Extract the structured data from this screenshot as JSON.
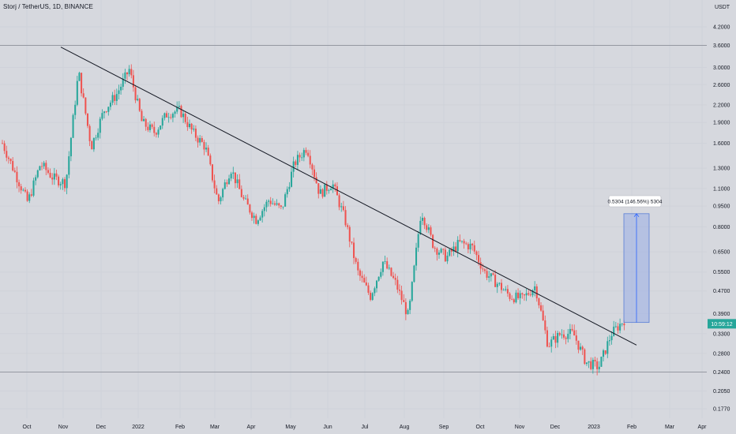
{
  "title": "Storj / TetherUS, 1D, BINANCE",
  "chart_data": {
    "type": "candlestick",
    "yscale": "log",
    "y_unit": "USDT",
    "y_ticks": [
      "4.2000",
      "3.6000",
      "3.0000",
      "2.6000",
      "2.2000",
      "1.9000",
      "1.6000",
      "1.3000",
      "1.1000",
      "0.9500",
      "0.8000",
      "0.6500",
      "0.5500",
      "0.4700",
      "0.3900",
      "0.3300",
      "0.2800",
      "0.2400",
      "0.2050",
      "0.1770"
    ],
    "x_ticks": [
      "Oct",
      "Nov",
      "Dec",
      "2022",
      "Feb",
      "Mar",
      "Apr",
      "May",
      "Jun",
      "Jul",
      "Aug",
      "Sep",
      "Oct",
      "Nov",
      "Dec",
      "2023",
      "Feb",
      "Mar",
      "Apr"
    ],
    "countdown": "10:59:12",
    "measure_label": "0.5304 (146.56%) 5304",
    "horizontal_levels": [
      3.6,
      0.24
    ],
    "trendline": {
      "from": {
        "date": "2021-11-01",
        "price": 3.55
      },
      "to": {
        "date": "2023-02-05",
        "price": 0.3
      }
    },
    "measure": {
      "from_price": 0.362,
      "to_price": 0.892
    },
    "price_path": [
      [
        "Oct",
        1.6
      ],
      [
        "Oct",
        1.25
      ],
      [
        "Oct",
        0.98
      ],
      [
        "Oct",
        1.35
      ],
      [
        "Oct",
        1.2
      ],
      [
        "Oct",
        1.15
      ],
      [
        "Nov",
        2.9
      ],
      [
        "Nov",
        1.55
      ],
      [
        "Nov",
        2.1
      ],
      [
        "Nov",
        2.4
      ],
      [
        "Dec",
        2.95
      ],
      [
        "Dec",
        1.9
      ],
      [
        "Dec",
        1.75
      ],
      [
        "Dec",
        2.05
      ],
      [
        "2022",
        2.1
      ],
      [
        "2022",
        1.75
      ],
      [
        "2022",
        1.55
      ],
      [
        "Feb",
        0.98
      ],
      [
        "Feb",
        1.3
      ],
      [
        "Feb",
        1.0
      ],
      [
        "Mar",
        0.85
      ],
      [
        "Mar",
        1.0
      ],
      [
        "Mar",
        0.92
      ],
      [
        "Apr",
        1.35
      ],
      [
        "Apr",
        1.55
      ],
      [
        "Apr",
        1.05
      ],
      [
        "May",
        1.15
      ],
      [
        "May",
        0.85
      ],
      [
        "May",
        0.55
      ],
      [
        "May",
        0.45
      ],
      [
        "May",
        0.6
      ],
      [
        "Jun",
        0.5
      ],
      [
        "Jun",
        0.38
      ],
      [
        "Jun",
        0.92
      ],
      [
        "Jul",
        0.68
      ],
      [
        "Jul",
        0.62
      ],
      [
        "Aug",
        0.7
      ],
      [
        "Aug",
        0.68
      ],
      [
        "Sep",
        0.55
      ],
      [
        "Sep",
        0.5
      ],
      [
        "Oct",
        0.45
      ],
      [
        "Oct",
        0.44
      ],
      [
        "Nov",
        0.49
      ],
      [
        "Nov",
        0.3
      ],
      [
        "Nov",
        0.33
      ],
      [
        "Dec",
        0.33
      ],
      [
        "Dec",
        0.26
      ],
      [
        "2023",
        0.25
      ],
      [
        "2023",
        0.33
      ],
      [
        "Feb",
        0.37
      ]
    ]
  }
}
